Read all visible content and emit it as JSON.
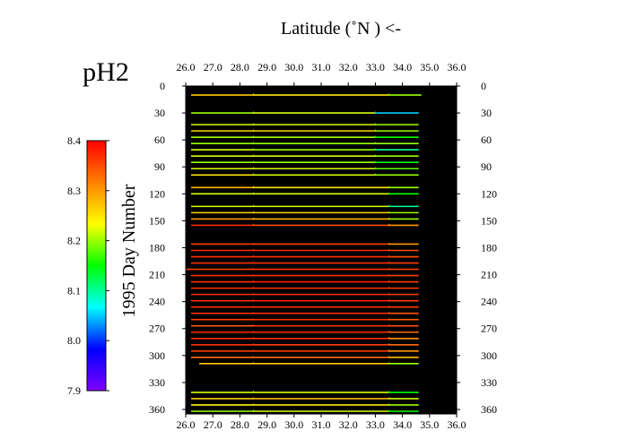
{
  "chart_data": {
    "type": "heatmap",
    "title": "Latitude  (˚N )  <-",
    "variable_label": "pH2",
    "ylabel": "1995  Day Number",
    "x_ticks": [
      "26.0",
      "27.0",
      "28.0",
      "29.0",
      "30.0",
      "31.0",
      "32.0",
      "33.0",
      "34.0",
      "35.0",
      "36.0"
    ],
    "x_range": [
      26.0,
      36.0
    ],
    "y_ticks": [
      "0",
      "30",
      "60",
      "90",
      "120",
      "150",
      "180",
      "210",
      "240",
      "270",
      "300",
      "330",
      "360"
    ],
    "y_range": [
      0,
      365
    ],
    "colorbar": {
      "range": [
        7.9,
        8.4
      ],
      "ticks": [
        "8.4",
        "8.3",
        "8.2",
        "8.1",
        "8.0",
        "7.9"
      ],
      "colors": [
        "#ff0000",
        "#ff8000",
        "#ffff00",
        "#00ff00",
        "#00ffff",
        "#0000ff",
        "#8000ff"
      ]
    },
    "background_color": "#000000",
    "transects": [
      {
        "day": 10,
        "lat_start": 26.2,
        "lat_end": 34.7,
        "segments": [
          [
            26.2,
            28.5,
            8.27
          ],
          [
            28.5,
            33.5,
            8.25
          ],
          [
            33.5,
            34.7,
            8.2
          ]
        ]
      },
      {
        "day": 30,
        "lat_start": 26.2,
        "lat_end": 34.6,
        "segments": [
          [
            26.2,
            28.5,
            8.2
          ],
          [
            28.5,
            33.0,
            8.22
          ],
          [
            33.0,
            34.6,
            8.05
          ]
        ]
      },
      {
        "day": 43,
        "lat_start": 26.2,
        "lat_end": 34.6,
        "segments": [
          [
            26.2,
            28.5,
            8.22
          ],
          [
            28.5,
            33.0,
            8.22
          ],
          [
            33.0,
            34.6,
            8.2
          ]
        ]
      },
      {
        "day": 50,
        "lat_start": 26.2,
        "lat_end": 34.6,
        "segments": [
          [
            26.2,
            28.5,
            8.26
          ],
          [
            28.5,
            33.0,
            8.26
          ],
          [
            33.0,
            34.6,
            8.2
          ]
        ]
      },
      {
        "day": 57,
        "lat_start": 26.2,
        "lat_end": 34.6,
        "segments": [
          [
            26.2,
            28.5,
            8.2
          ],
          [
            28.5,
            33.0,
            8.2
          ],
          [
            33.0,
            34.6,
            8.15
          ]
        ]
      },
      {
        "day": 64,
        "lat_start": 26.2,
        "lat_end": 34.6,
        "segments": [
          [
            26.2,
            28.5,
            8.2
          ],
          [
            28.5,
            33.0,
            8.2
          ],
          [
            33.0,
            34.6,
            8.2
          ]
        ]
      },
      {
        "day": 71,
        "lat_start": 26.2,
        "lat_end": 34.6,
        "segments": [
          [
            26.2,
            28.5,
            8.22
          ],
          [
            28.5,
            33.0,
            8.2
          ],
          [
            33.0,
            34.6,
            8.1
          ]
        ]
      },
      {
        "day": 78,
        "lat_start": 26.2,
        "lat_end": 34.6,
        "segments": [
          [
            26.2,
            28.5,
            8.22
          ],
          [
            28.5,
            33.0,
            8.22
          ],
          [
            33.0,
            34.6,
            8.2
          ]
        ]
      },
      {
        "day": 85,
        "lat_start": 26.2,
        "lat_end": 34.6,
        "segments": [
          [
            26.2,
            28.5,
            8.2
          ],
          [
            28.5,
            33.0,
            8.2
          ],
          [
            33.0,
            34.6,
            8.15
          ]
        ]
      },
      {
        "day": 92,
        "lat_start": 26.2,
        "lat_end": 34.6,
        "segments": [
          [
            26.2,
            28.5,
            8.22
          ],
          [
            28.5,
            33.0,
            8.22
          ],
          [
            33.0,
            34.6,
            8.18
          ]
        ]
      },
      {
        "day": 99,
        "lat_start": 26.2,
        "lat_end": 34.6,
        "segments": [
          [
            26.2,
            28.5,
            8.25
          ],
          [
            28.5,
            33.0,
            8.22
          ],
          [
            33.0,
            34.6,
            8.2
          ]
        ]
      },
      {
        "day": 113,
        "lat_start": 26.2,
        "lat_end": 34.6,
        "segments": [
          [
            26.2,
            28.5,
            8.28
          ],
          [
            28.5,
            33.5,
            8.25
          ],
          [
            33.5,
            34.6,
            8.2
          ]
        ]
      },
      {
        "day": 120,
        "lat_start": 26.2,
        "lat_end": 34.6,
        "segments": [
          [
            26.2,
            28.5,
            8.22
          ],
          [
            28.5,
            33.5,
            8.22
          ],
          [
            33.5,
            34.6,
            8.15
          ]
        ]
      },
      {
        "day": 134,
        "lat_start": 26.2,
        "lat_end": 34.6,
        "segments": [
          [
            26.2,
            28.5,
            8.22
          ],
          [
            28.5,
            33.5,
            8.22
          ],
          [
            33.5,
            34.6,
            8.1
          ]
        ]
      },
      {
        "day": 141,
        "lat_start": 26.2,
        "lat_end": 34.6,
        "segments": [
          [
            26.2,
            28.5,
            8.26
          ],
          [
            28.5,
            33.5,
            8.26
          ],
          [
            33.5,
            34.6,
            8.2
          ]
        ]
      },
      {
        "day": 148,
        "lat_start": 26.2,
        "lat_end": 34.6,
        "segments": [
          [
            26.2,
            28.5,
            8.3
          ],
          [
            28.5,
            33.5,
            8.28
          ],
          [
            33.5,
            34.6,
            8.2
          ]
        ]
      },
      {
        "day": 155,
        "lat_start": 26.2,
        "lat_end": 34.6,
        "segments": [
          [
            26.2,
            28.5,
            8.37
          ],
          [
            28.5,
            33.5,
            8.35
          ],
          [
            33.5,
            34.6,
            8.3
          ]
        ]
      },
      {
        "day": 176,
        "lat_start": 26.2,
        "lat_end": 34.6,
        "segments": [
          [
            26.2,
            28.5,
            8.36
          ],
          [
            28.5,
            33.5,
            8.36
          ],
          [
            33.5,
            34.6,
            8.3
          ]
        ]
      },
      {
        "day": 183,
        "lat_start": 26.2,
        "lat_end": 34.6,
        "segments": [
          [
            26.2,
            28.5,
            8.37
          ],
          [
            28.5,
            33.5,
            8.37
          ],
          [
            33.5,
            34.6,
            8.35
          ]
        ]
      },
      {
        "day": 190,
        "lat_start": 26.2,
        "lat_end": 34.6,
        "segments": [
          [
            26.2,
            28.5,
            8.37
          ],
          [
            28.5,
            33.5,
            8.37
          ],
          [
            33.5,
            34.6,
            8.35
          ]
        ]
      },
      {
        "day": 197,
        "lat_start": 26.2,
        "lat_end": 34.6,
        "segments": [
          [
            26.2,
            28.5,
            8.37
          ],
          [
            28.5,
            33.5,
            8.37
          ],
          [
            33.5,
            34.6,
            8.36
          ]
        ]
      },
      {
        "day": 204,
        "lat_start": 26.0,
        "lat_end": 34.6,
        "segments": [
          [
            26.0,
            28.5,
            8.36
          ],
          [
            28.5,
            33.5,
            8.37
          ],
          [
            33.5,
            34.6,
            8.36
          ]
        ]
      },
      {
        "day": 211,
        "lat_start": 26.2,
        "lat_end": 34.6,
        "segments": [
          [
            26.2,
            28.5,
            8.37
          ],
          [
            28.5,
            33.5,
            8.37
          ],
          [
            33.5,
            34.6,
            8.36
          ]
        ]
      },
      {
        "day": 218,
        "lat_start": 26.2,
        "lat_end": 34.6,
        "segments": [
          [
            26.2,
            28.5,
            8.37
          ],
          [
            28.5,
            33.5,
            8.38
          ],
          [
            33.5,
            34.6,
            8.36
          ]
        ]
      },
      {
        "day": 225,
        "lat_start": 26.2,
        "lat_end": 34.6,
        "segments": [
          [
            26.2,
            28.5,
            8.37
          ],
          [
            28.5,
            33.5,
            8.37
          ],
          [
            33.5,
            34.6,
            8.36
          ]
        ]
      },
      {
        "day": 232,
        "lat_start": 26.2,
        "lat_end": 34.6,
        "segments": [
          [
            26.2,
            28.5,
            8.37
          ],
          [
            28.5,
            33.5,
            8.37
          ],
          [
            33.5,
            34.6,
            8.36
          ]
        ]
      },
      {
        "day": 239,
        "lat_start": 26.2,
        "lat_end": 34.6,
        "segments": [
          [
            26.2,
            28.5,
            8.37
          ],
          [
            28.5,
            33.5,
            8.38
          ],
          [
            33.5,
            34.6,
            8.36
          ]
        ]
      },
      {
        "day": 246,
        "lat_start": 26.2,
        "lat_end": 34.6,
        "segments": [
          [
            26.2,
            28.5,
            8.37
          ],
          [
            28.5,
            33.5,
            8.37
          ],
          [
            33.5,
            34.6,
            8.36
          ]
        ]
      },
      {
        "day": 253,
        "lat_start": 26.2,
        "lat_end": 34.6,
        "segments": [
          [
            26.2,
            28.5,
            8.37
          ],
          [
            28.5,
            33.5,
            8.37
          ],
          [
            33.5,
            34.6,
            8.34
          ]
        ]
      },
      {
        "day": 260,
        "lat_start": 26.2,
        "lat_end": 34.6,
        "segments": [
          [
            26.2,
            28.5,
            8.36
          ],
          [
            28.5,
            33.5,
            8.37
          ],
          [
            33.5,
            34.6,
            8.34
          ]
        ]
      },
      {
        "day": 267,
        "lat_start": 26.2,
        "lat_end": 34.6,
        "segments": [
          [
            26.2,
            28.5,
            8.34
          ],
          [
            28.5,
            33.5,
            8.37
          ],
          [
            33.5,
            34.6,
            8.35
          ]
        ]
      },
      {
        "day": 274,
        "lat_start": 26.2,
        "lat_end": 34.6,
        "segments": [
          [
            26.2,
            28.5,
            8.37
          ],
          [
            28.5,
            33.5,
            8.37
          ],
          [
            33.5,
            34.6,
            8.33
          ]
        ]
      },
      {
        "day": 281,
        "lat_start": 26.2,
        "lat_end": 34.6,
        "segments": [
          [
            26.2,
            28.5,
            8.37
          ],
          [
            28.5,
            33.5,
            8.37
          ],
          [
            33.5,
            34.6,
            8.3
          ]
        ]
      },
      {
        "day": 288,
        "lat_start": 26.2,
        "lat_end": 34.6,
        "segments": [
          [
            26.2,
            28.5,
            8.37
          ],
          [
            28.5,
            33.5,
            8.36
          ],
          [
            33.5,
            34.6,
            8.33
          ]
        ]
      },
      {
        "day": 295,
        "lat_start": 26.2,
        "lat_end": 34.6,
        "segments": [
          [
            26.2,
            28.5,
            8.36
          ],
          [
            28.5,
            33.5,
            8.36
          ],
          [
            33.5,
            34.6,
            8.3
          ]
        ]
      },
      {
        "day": 302,
        "lat_start": 26.2,
        "lat_end": 34.6,
        "segments": [
          [
            26.2,
            28.5,
            8.33
          ],
          [
            28.5,
            33.5,
            8.33
          ],
          [
            33.5,
            34.6,
            8.28
          ]
        ]
      },
      {
        "day": 309,
        "lat_start": 26.5,
        "lat_end": 34.6,
        "segments": [
          [
            26.5,
            28.5,
            8.27
          ],
          [
            28.5,
            33.5,
            8.27
          ],
          [
            33.5,
            34.6,
            8.2
          ]
        ]
      },
      {
        "day": 341,
        "lat_start": 26.2,
        "lat_end": 34.6,
        "segments": [
          [
            26.2,
            28.5,
            8.22
          ],
          [
            28.5,
            33.5,
            8.22
          ],
          [
            33.5,
            34.6,
            8.15
          ]
        ]
      },
      {
        "day": 348,
        "lat_start": 26.2,
        "lat_end": 34.6,
        "segments": [
          [
            26.2,
            28.5,
            8.27
          ],
          [
            28.5,
            33.5,
            8.28
          ],
          [
            33.5,
            34.6,
            8.22
          ]
        ]
      },
      {
        "day": 355,
        "lat_start": 26.2,
        "lat_end": 34.6,
        "segments": [
          [
            26.2,
            28.5,
            8.24
          ],
          [
            28.5,
            33.5,
            8.25
          ],
          [
            33.5,
            34.6,
            8.2
          ]
        ]
      },
      {
        "day": 362,
        "lat_start": 26.2,
        "lat_end": 34.6,
        "segments": [
          [
            26.2,
            28.5,
            8.2
          ],
          [
            28.5,
            33.5,
            8.22
          ],
          [
            33.5,
            34.6,
            8.15
          ]
        ]
      }
    ]
  }
}
